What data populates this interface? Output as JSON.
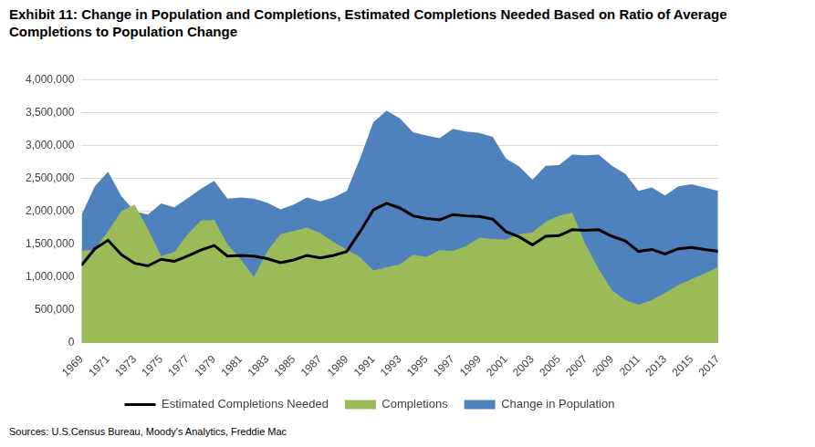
{
  "chart_data": {
    "type": "area",
    "title": "Exhibit 11: Change in Population and Completions, Estimated Completions Needed Based on Ratio of Average Completions to Population Change",
    "source": "Sources: U.S.Census Bureau, Moody's Analytics, Freddie Mac",
    "x": [
      1969,
      1970,
      1971,
      1972,
      1973,
      1974,
      1975,
      1976,
      1977,
      1978,
      1979,
      1980,
      1981,
      1982,
      1983,
      1984,
      1985,
      1986,
      1987,
      1988,
      1989,
      1990,
      1991,
      1992,
      1993,
      1994,
      1995,
      1996,
      1997,
      1998,
      1999,
      2000,
      2001,
      2002,
      2003,
      2004,
      2005,
      2006,
      2007,
      2008,
      2009,
      2010,
      2011,
      2012,
      2013,
      2014,
      2015,
      2016,
      2017
    ],
    "xlim": [
      1969,
      2017
    ],
    "xticks": [
      1969,
      1971,
      1973,
      1975,
      1977,
      1979,
      1981,
      1983,
      1985,
      1987,
      1989,
      1991,
      1993,
      1995,
      1997,
      1999,
      2001,
      2003,
      2005,
      2007,
      2009,
      2011,
      2013,
      2015,
      2017
    ],
    "ylim": [
      0,
      4000000
    ],
    "yticks": [
      0,
      {
        "value": 500000,
        "label": "500,000"
      },
      {
        "value": 1000000,
        "label": "1,000,000"
      },
      {
        "value": 1500000,
        "label": "1,500,000"
      },
      {
        "value": 2000000,
        "label": "2,000,000"
      },
      {
        "value": 2500000,
        "label": "2,500,000"
      },
      {
        "value": 3000000,
        "label": "3,000,000"
      },
      {
        "value": 3500000,
        "label": "3,500,000"
      },
      {
        "value": 4000000,
        "label": "4,000,000"
      }
    ],
    "grid": true,
    "legend": "bottom",
    "series": [
      {
        "name": "Change in Population",
        "type": "area",
        "color": "#4f81bd",
        "values": [
          1950000,
          2380000,
          2600000,
          2230000,
          2000000,
          1950000,
          2120000,
          2060000,
          2200000,
          2340000,
          2460000,
          2190000,
          2210000,
          2190000,
          2130000,
          2030000,
          2100000,
          2210000,
          2150000,
          2210000,
          2310000,
          2800000,
          3350000,
          3530000,
          3410000,
          3200000,
          3150000,
          3110000,
          3250000,
          3210000,
          3190000,
          3130000,
          2800000,
          2680000,
          2480000,
          2690000,
          2700000,
          2860000,
          2850000,
          2860000,
          2690000,
          2570000,
          2310000,
          2360000,
          2240000,
          2380000,
          2410000,
          2360000,
          2310000
        ]
      },
      {
        "name": "Completions",
        "type": "area",
        "color": "#9bbb59",
        "values": [
          1400000,
          1420000,
          1700000,
          2000000,
          2100000,
          1730000,
          1320000,
          1380000,
          1650000,
          1860000,
          1870000,
          1500000,
          1270000,
          1000000,
          1390000,
          1650000,
          1700000,
          1750000,
          1670000,
          1530000,
          1420000,
          1300000,
          1100000,
          1150000,
          1190000,
          1340000,
          1310000,
          1410000,
          1400000,
          1470000,
          1600000,
          1580000,
          1570000,
          1650000,
          1680000,
          1840000,
          1930000,
          1980000,
          1500000,
          1120000,
          800000,
          650000,
          580000,
          650000,
          760000,
          880000,
          970000,
          1060000,
          1150000
        ]
      },
      {
        "name": "Estimated Completions Needed",
        "type": "line",
        "color": "#000000",
        "values": [
          1180000,
          1430000,
          1560000,
          1340000,
          1210000,
          1170000,
          1270000,
          1240000,
          1320000,
          1410000,
          1480000,
          1320000,
          1330000,
          1320000,
          1280000,
          1220000,
          1260000,
          1330000,
          1290000,
          1330000,
          1390000,
          1690000,
          2020000,
          2120000,
          2050000,
          1930000,
          1890000,
          1870000,
          1950000,
          1930000,
          1920000,
          1880000,
          1690000,
          1610000,
          1490000,
          1620000,
          1630000,
          1720000,
          1710000,
          1720000,
          1620000,
          1550000,
          1390000,
          1420000,
          1350000,
          1430000,
          1450000,
          1420000,
          1390000
        ]
      }
    ]
  }
}
